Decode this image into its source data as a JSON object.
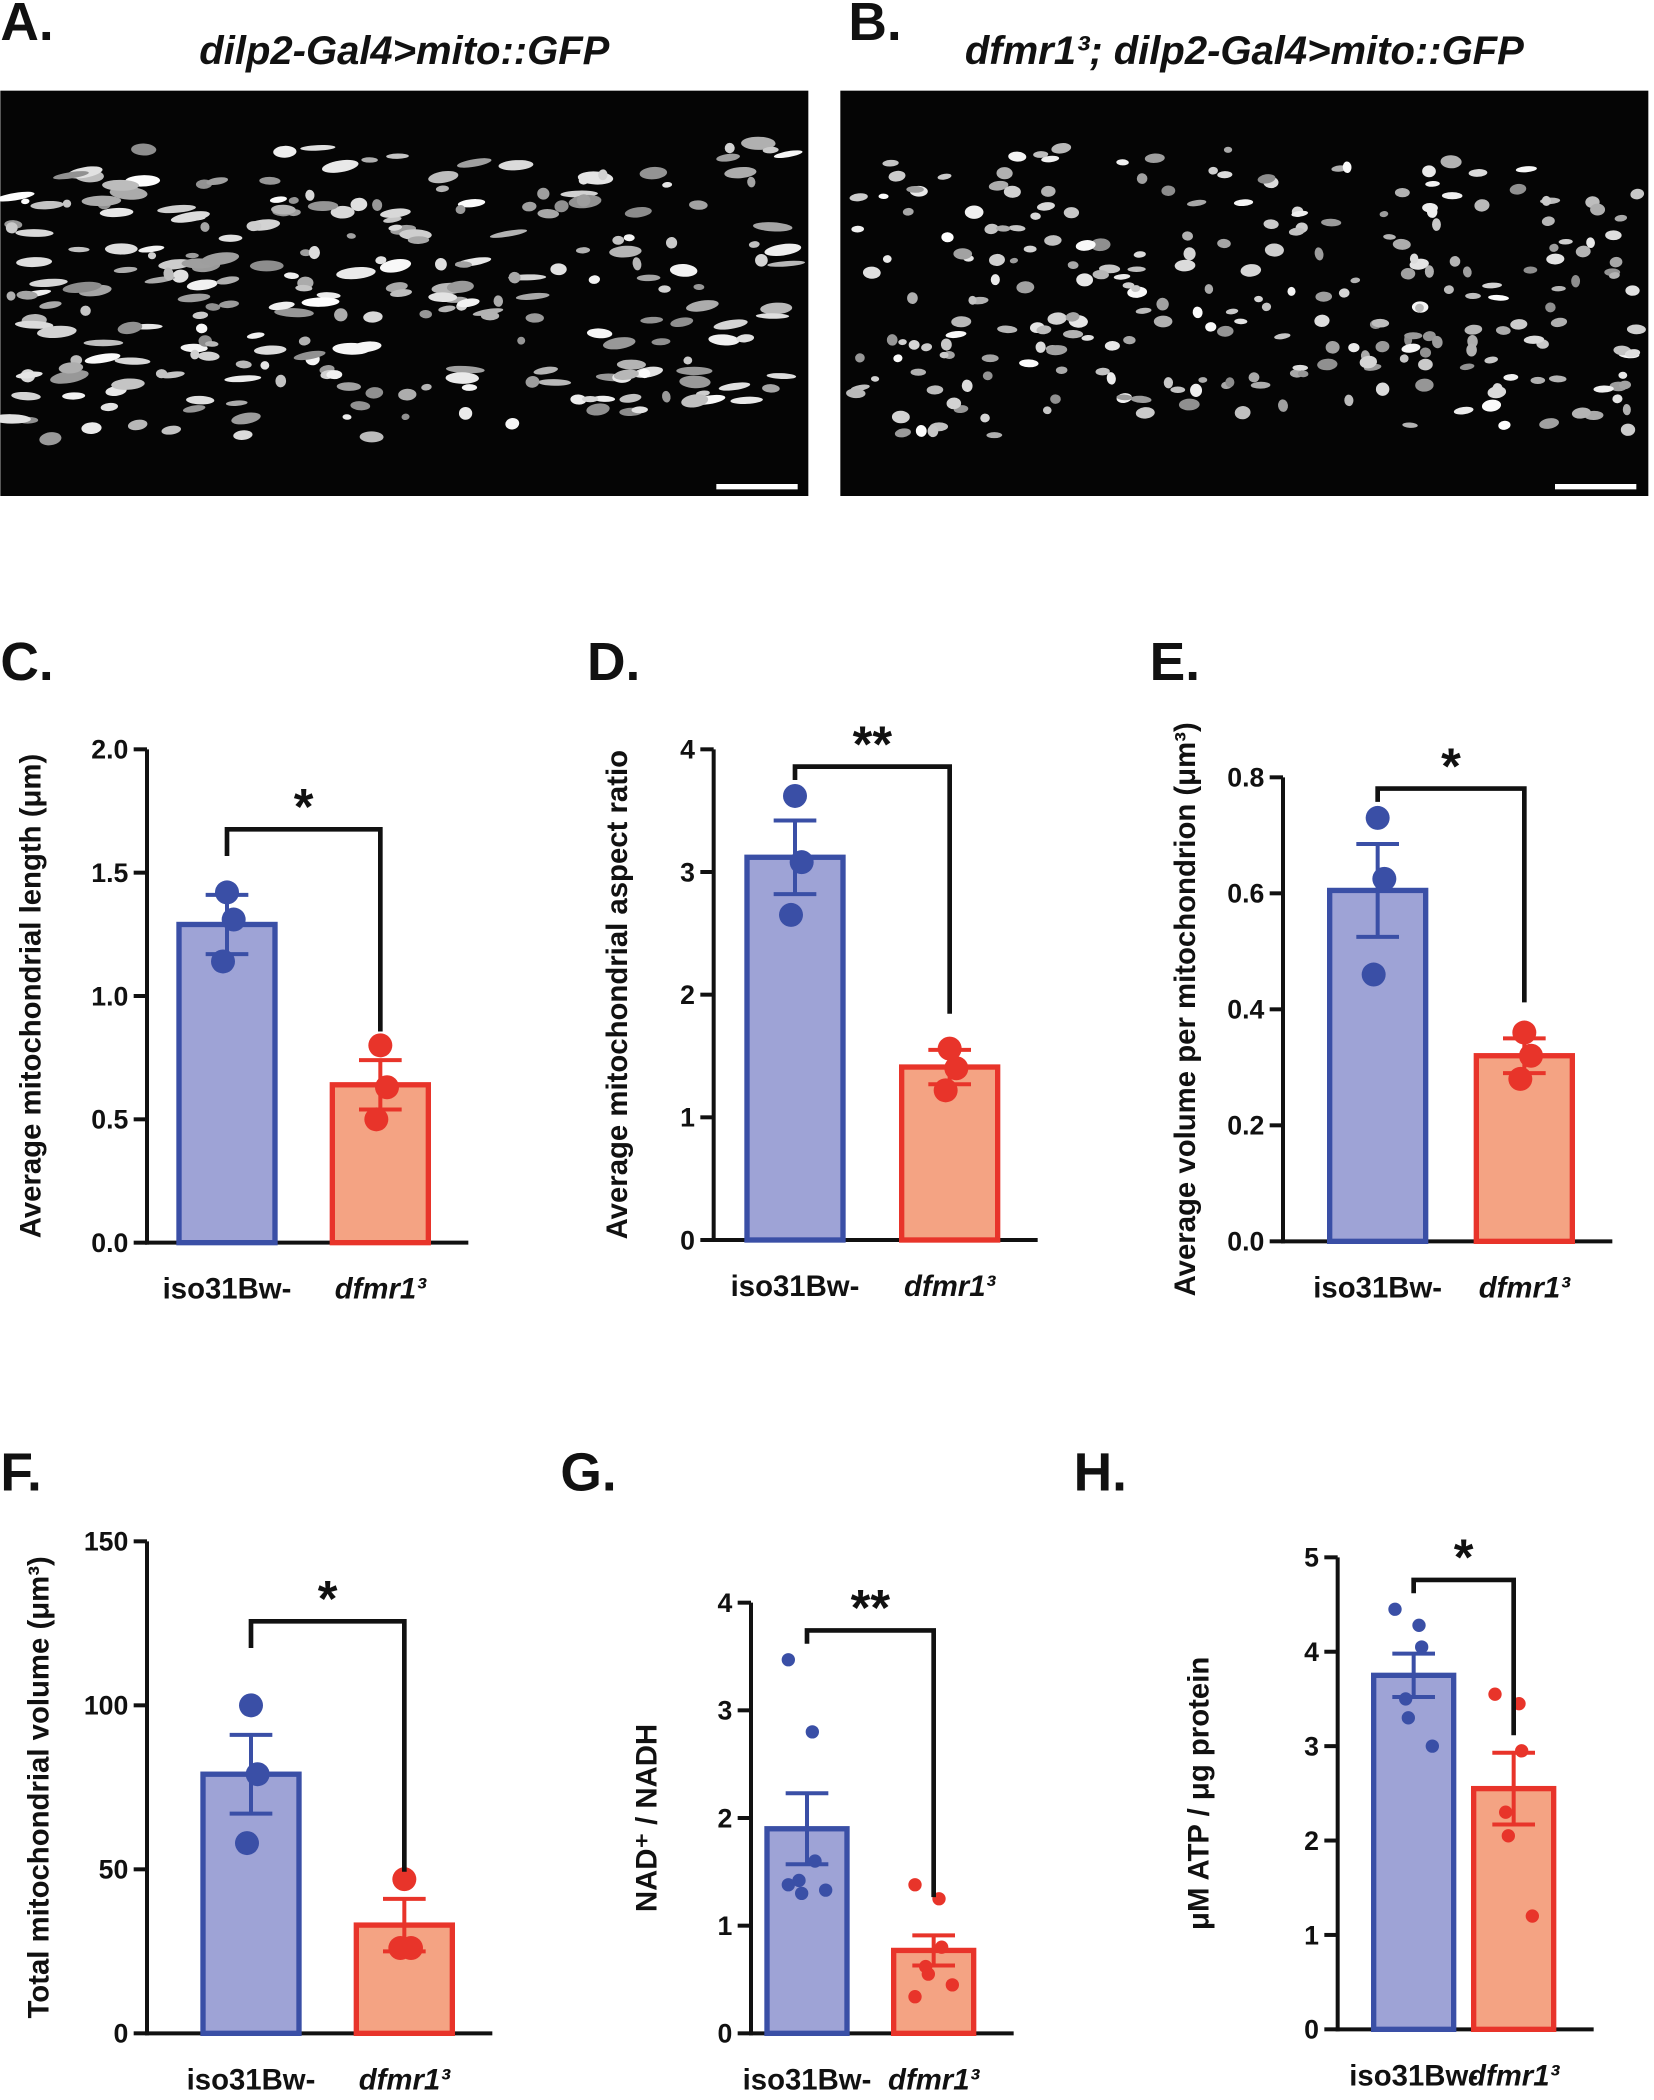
{
  "images": [
    {
      "label": "A.",
      "title": "dilp2-Gal4>mito::GFP"
    },
    {
      "label": "B.",
      "title": "dfmr1³; dilp2-Gal4>mito::GFP"
    }
  ],
  "chart_data": [
    {
      "type": "bar",
      "label": "C.",
      "ylabel": "Average mitochondrial length (μm)",
      "categories": [
        "iso31Bw-",
        "dfmr1³"
      ],
      "values": [
        1.29,
        0.64
      ],
      "errors": [
        0.12,
        0.1
      ],
      "points": [
        [
          1.42,
          1.31,
          1.14
        ],
        [
          0.8,
          0.63,
          0.5
        ]
      ],
      "fills": [
        "#9ea3d6",
        "#f4a383"
      ],
      "colors": [
        "#3a4fa6",
        "#e8342a"
      ],
      "significance": "*",
      "ylim": [
        0,
        2
      ],
      "yticks": [
        {
          "value": 0,
          "label": "0.0"
        },
        0.5,
        {
          "value": 1,
          "label": "1.0"
        },
        1.5,
        {
          "value": 2,
          "label": "2.0"
        }
      ]
    },
    {
      "type": "bar",
      "label": "D.",
      "ylabel": "Average mitochondrial aspect ratio",
      "categories": [
        "iso31Bw-",
        "dfmr1³"
      ],
      "values": [
        3.12,
        1.41
      ],
      "errors": [
        0.3,
        0.14
      ],
      "points": [
        [
          3.62,
          3.08,
          2.65
        ],
        [
          1.56,
          1.4,
          1.22
        ]
      ],
      "fills": [
        "#9ea3d6",
        "#f4a383"
      ],
      "colors": [
        "#3a4fa6",
        "#e8342a"
      ],
      "significance": "**",
      "ylim": [
        0,
        4
      ],
      "yticks": [
        0,
        1,
        2,
        3,
        4
      ]
    },
    {
      "type": "bar",
      "label": "E.",
      "ylabel": "Average volume per mitochondrion (μm³)",
      "categories": [
        "iso31Bw-",
        "dfmr1³"
      ],
      "values": [
        0.605,
        0.32
      ],
      "errors": [
        0.08,
        0.03
      ],
      "points": [
        [
          0.73,
          0.625,
          0.46
        ],
        [
          0.36,
          0.32,
          0.28
        ]
      ],
      "fills": [
        "#9ea3d6",
        "#f4a383"
      ],
      "colors": [
        "#3a4fa6",
        "#e8342a"
      ],
      "significance": "*",
      "ylim": [
        0,
        0.8
      ],
      "yticks": [
        {
          "value": 0,
          "label": "0.0"
        },
        0.2,
        0.4,
        0.6,
        0.8
      ]
    },
    {
      "type": "bar",
      "label": "F.",
      "ylabel": "Total mitochondrial volume (μm³)",
      "categories": [
        "iso31Bw-",
        "dfmr1³"
      ],
      "values": [
        79,
        33
      ],
      "errors": [
        12,
        8
      ],
      "points": [
        [
          100,
          79,
          58
        ],
        [
          47,
          26,
          26
        ]
      ],
      "fills": [
        "#9ea3d6",
        "#f4a383"
      ],
      "colors": [
        "#3a4fa6",
        "#e8342a"
      ],
      "significance": "*",
      "ylim": [
        0,
        150
      ],
      "yticks": [
        0,
        50,
        100,
        150
      ]
    },
    {
      "type": "bar",
      "label": "G.",
      "ylabel": "NAD⁺ / NADH",
      "categories": [
        "iso31Bw-",
        "dfmr1³"
      ],
      "values": [
        1.9,
        0.77
      ],
      "errors": [
        0.33,
        0.14
      ],
      "points": [
        [
          3.47,
          2.8,
          1.6,
          1.42,
          1.3,
          1.33,
          1.38
        ],
        [
          1.38,
          1.25,
          0.8,
          0.62,
          0.55,
          0.45,
          0.34
        ]
      ],
      "fills": [
        "#9ea3d6",
        "#f4a383"
      ],
      "colors": [
        "#3a4fa6",
        "#e8342a"
      ],
      "significance": "**",
      "ylim": [
        0,
        4
      ],
      "yticks": [
        0,
        1,
        2,
        3,
        4
      ]
    },
    {
      "type": "bar",
      "label": "H.",
      "ylabel": "μM ATP / μg protein",
      "categories": [
        "iso31Bw-",
        "dfmr1³"
      ],
      "values": [
        3.75,
        2.55
      ],
      "errors": [
        0.23,
        0.38
      ],
      "points": [
        [
          4.45,
          4.28,
          4.05,
          3.5,
          3.3,
          3.0
        ],
        [
          3.55,
          3.45,
          2.95,
          2.3,
          2.05,
          1.2
        ]
      ],
      "fills": [
        "#9ea3d6",
        "#f4a383"
      ],
      "colors": [
        "#3a4fa6",
        "#e8342a"
      ],
      "significance": "*",
      "ylim": [
        0,
        5
      ],
      "yticks": [
        0,
        1,
        2,
        3,
        4,
        5
      ]
    }
  ]
}
